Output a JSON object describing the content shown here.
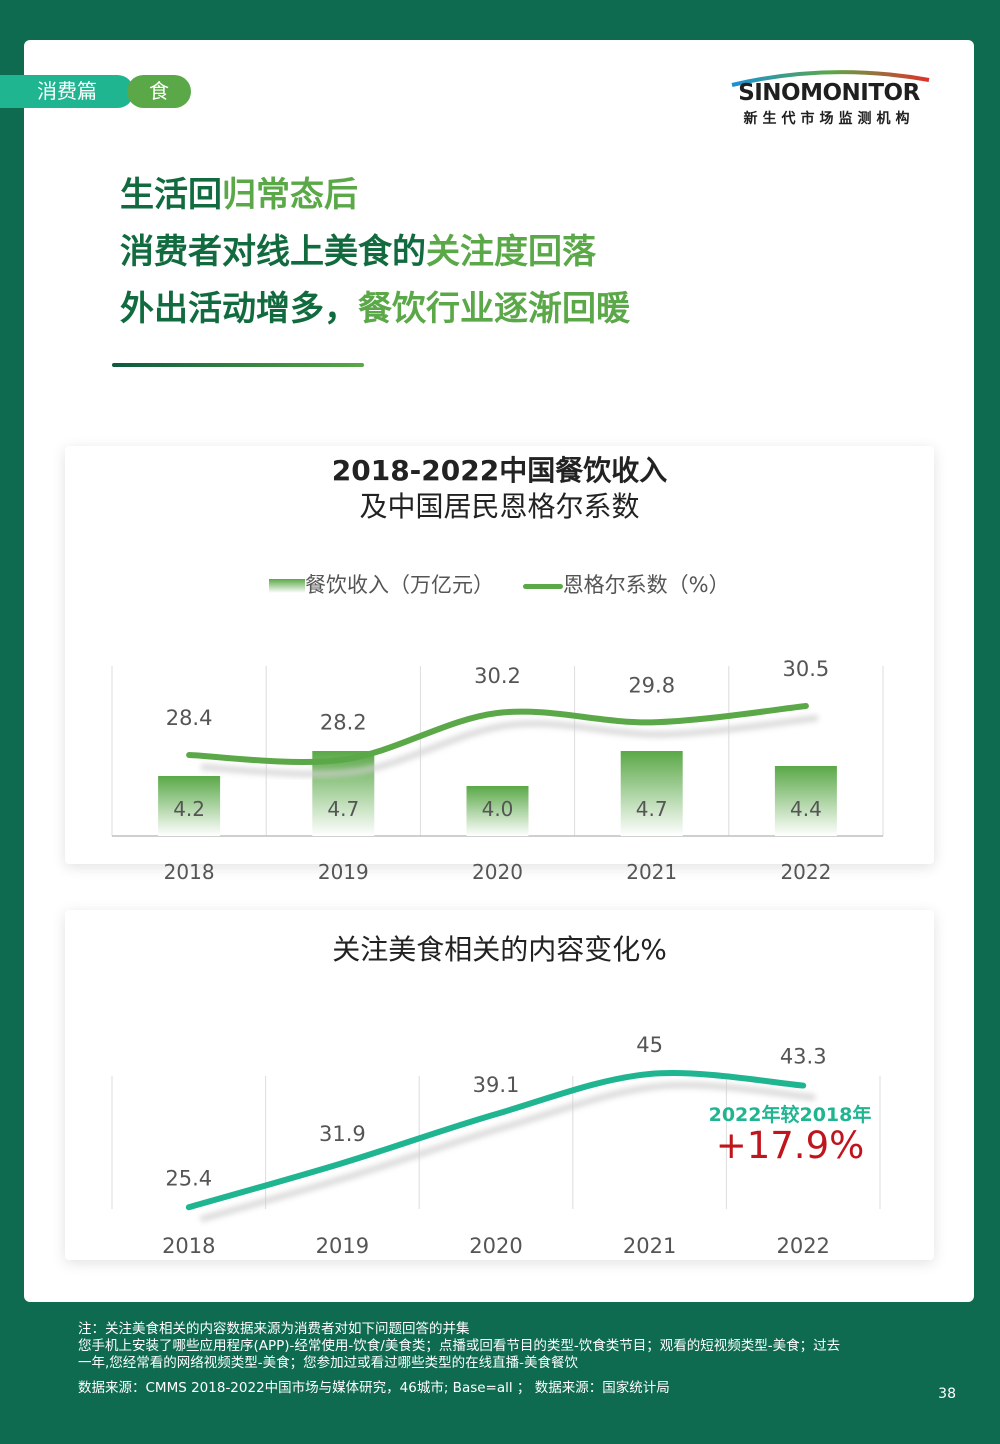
{
  "tags": {
    "category": "消费篇",
    "sub": "食"
  },
  "logo": {
    "brand": "SINOMONITOR",
    "sub": "新生代市场监测机构"
  },
  "headline": {
    "line1_part1": "生活回",
    "line1_part2": "归常态后",
    "line2_part1": "消费者对线上美食的",
    "line2_part2": "关注度回落",
    "line3_part1": "外出活动增多，",
    "line3_part2": "餐饮行业逐渐回暖"
  },
  "chart1": {
    "title_line1": "2018-2022中国餐饮收入",
    "title_line2": "及中国居民恩格尔系数",
    "legend_bar": "餐饮收入（万亿元）",
    "legend_line": "恩格尔系数（%）"
  },
  "chart2": {
    "title": "关注美食相关的内容变化%",
    "note_label": "2022年较2018年",
    "note_value": "+17.9%"
  },
  "chart_data": [
    {
      "type": "bar+line",
      "categories": [
        "2018",
        "2019",
        "2020",
        "2021",
        "2022"
      ],
      "series": [
        {
          "name": "餐饮收入（万亿元）",
          "type": "bar",
          "values": [
            4.2,
            4.7,
            4.0,
            4.7,
            4.4
          ]
        },
        {
          "name": "恩格尔系数（%）",
          "type": "line",
          "values": [
            28.4,
            28.2,
            30.2,
            29.8,
            30.5
          ]
        }
      ],
      "grid": "vertical",
      "legend": "top"
    },
    {
      "type": "line",
      "categories": [
        "2018",
        "2019",
        "2020",
        "2021",
        "2022"
      ],
      "series": [
        {
          "values": [
            25.4,
            31.9,
            39.1,
            45,
            43.3
          ]
        }
      ],
      "grid": "vertical"
    }
  ],
  "colors": {
    "green": "#5aa847",
    "dark_green": "#116b3f",
    "teal": "#20b591",
    "red": "#c0151c",
    "background": "#0e6b50"
  },
  "footnote": {
    "line1": "注：关注美食相关的内容数据来源为消费者对如下问题回答的并集",
    "line2": "您手机上安装了哪些应用程序(APP)-经常使用-饮食/美食类；点播或回看节目的类型-饮食类节目；观看的短视频类型-美食；过去",
    "line3": "一年,您经常看的网络视频类型-美食；您参加过或看过哪些类型的在线直播-美食餐饮",
    "line4": "数据来源：CMMS 2018-2022中国市场与媒体研究，46城市; Base=all ； 数据来源：国家统计局"
  },
  "page_number": "38"
}
